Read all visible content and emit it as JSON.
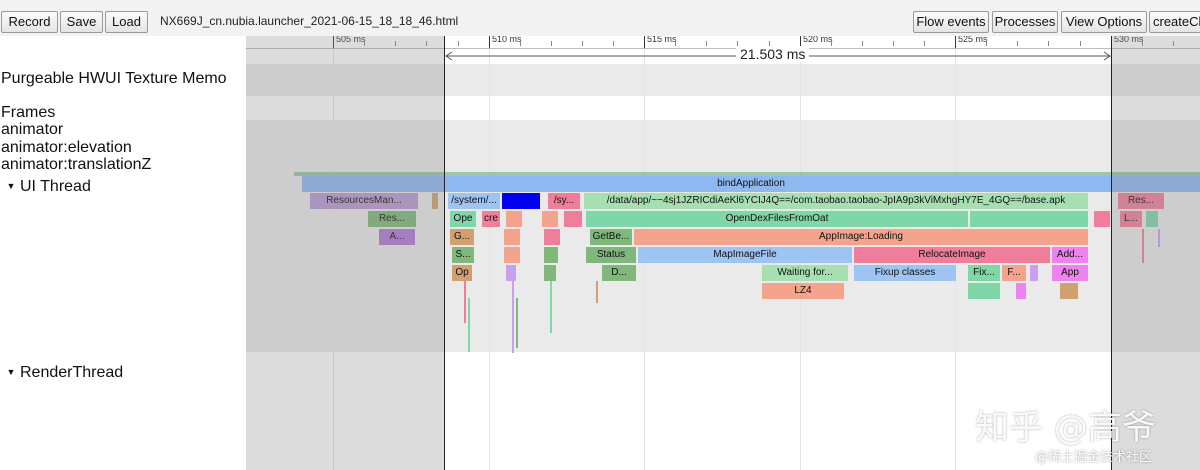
{
  "toolbar": {
    "record_label": "Record",
    "save_label": "Save",
    "load_label": "Load",
    "filename": "NX669J_cn.nubia.launcher_2021-06-15_18_18_46.html",
    "flow_events_label": "Flow events",
    "processes_label": "Processes",
    "view_options_label": "View Options",
    "create_label": "createCl"
  },
  "ruler": {
    "ticks": [
      "505 ms",
      "510 ms",
      "515 ms",
      "520 ms",
      "525 ms",
      "530 ms"
    ],
    "selection_duration": "21.503 ms"
  },
  "tracks": {
    "purgeable": "Purgeable HWUI Texture Memo",
    "frames": "Frames",
    "animator": "animator",
    "animator_elevation": "animator:elevation",
    "animator_translationz": "animator:translationZ",
    "ui_thread": "UI Thread",
    "render_thread": "RenderThread",
    "expand_glyph": "▼"
  },
  "slices": {
    "bind_application": "bindApplication",
    "resources_man": "ResourcesMan...",
    "res": "Res...",
    "a": "A...",
    "system": "/system/...",
    "sy": "/sy...",
    "data_app": "/data/app/~~4sj1JZRICdiAeKl6YCIJ4Q==/com.taobao.taobao-JpIA9p3kViMxhgHY7E_4GQ==/base.apk",
    "ope": "Ope",
    "cre": "cre",
    "open_dex": "OpenDexFilesFromOat",
    "g": "G...",
    "get_be": "GetBe...",
    "app_image_loading": "AppImage:Loading",
    "s": "S...",
    "status": "Status",
    "map_image_file": "MapImageFile",
    "relocate_image": "RelocateImage",
    "add": "Add...",
    "op": "Op",
    "d": "D...",
    "waiting_for": "Waiting for...",
    "fixup_classes": "Fixup classes",
    "fix": "Fix...",
    "f": "F...",
    "app": "App",
    "lz4": "LZ4",
    "res_right": "Res...",
    "l_right": "L..."
  },
  "watermark": {
    "brand": "知乎 @高爷",
    "community": "@稀土掘金技术社区"
  },
  "colors": {
    "bind_application": "#8db8f0",
    "open_dex": "#7fd6a6",
    "app_image": "#f4a48c",
    "map_image": "#9ec4f4",
    "relocate": "#f07e9a",
    "magenta": "#ee82ee",
    "selected_blue": "#0000ee"
  }
}
